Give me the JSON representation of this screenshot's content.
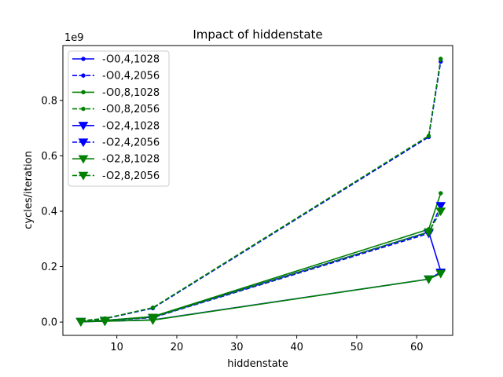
{
  "chart_data": {
    "type": "line",
    "title": "Impact of hiddenstate",
    "xlabel": "hiddenstate",
    "ylabel": "cycles/iteration",
    "offset_label": "1e9",
    "xlim": [
      1,
      66
    ],
    "ylim": [
      -0.048,
      0.998
    ],
    "xticks": [
      10,
      20,
      30,
      40,
      50,
      60
    ],
    "yticks": [
      0.0,
      0.2,
      0.4,
      0.6,
      0.8
    ],
    "ytick_labels": [
      "0.0",
      "0.2",
      "0.4",
      "0.6",
      "0.8"
    ],
    "x": [
      4,
      8,
      16,
      62,
      64
    ],
    "legend_position": "upper-left",
    "series": [
      {
        "name": "-O0,4,1028",
        "color": "#0000ff",
        "linestyle": "solid",
        "marker": "dot",
        "values": [
          0.002,
          0.006,
          0.018,
          0.325,
          0.185
        ]
      },
      {
        "name": "-O0,4,2056",
        "color": "#0000ff",
        "linestyle": "dashed",
        "marker": "dot",
        "values": [
          0.004,
          0.012,
          0.05,
          0.668,
          0.94
        ]
      },
      {
        "name": "-O0,8,1028",
        "color": "#008000",
        "linestyle": "solid",
        "marker": "dot",
        "values": [
          0.002,
          0.006,
          0.02,
          0.335,
          0.465
        ]
      },
      {
        "name": "-O0,8,2056",
        "color": "#008000",
        "linestyle": "dashed",
        "marker": "dot",
        "values": [
          0.005,
          0.013,
          0.052,
          0.672,
          0.95
        ]
      },
      {
        "name": "-O2,4,1028",
        "color": "#0000ff",
        "linestyle": "solid",
        "marker": "triangle",
        "values": [
          0.001,
          0.003,
          0.008,
          0.155,
          0.18
        ]
      },
      {
        "name": "-O2,4,2056",
        "color": "#0000ff",
        "linestyle": "dashed",
        "marker": "triangle",
        "values": [
          0.002,
          0.006,
          0.016,
          0.32,
          0.42
        ]
      },
      {
        "name": "-O2,8,1028",
        "color": "#008000",
        "linestyle": "solid",
        "marker": "triangle",
        "values": [
          0.001,
          0.003,
          0.007,
          0.155,
          0.175
        ]
      },
      {
        "name": "-O2,8,2056",
        "color": "#008000",
        "linestyle": "dashed",
        "marker": "triangle",
        "values": [
          0.002,
          0.006,
          0.017,
          0.325,
          0.4
        ]
      }
    ]
  }
}
